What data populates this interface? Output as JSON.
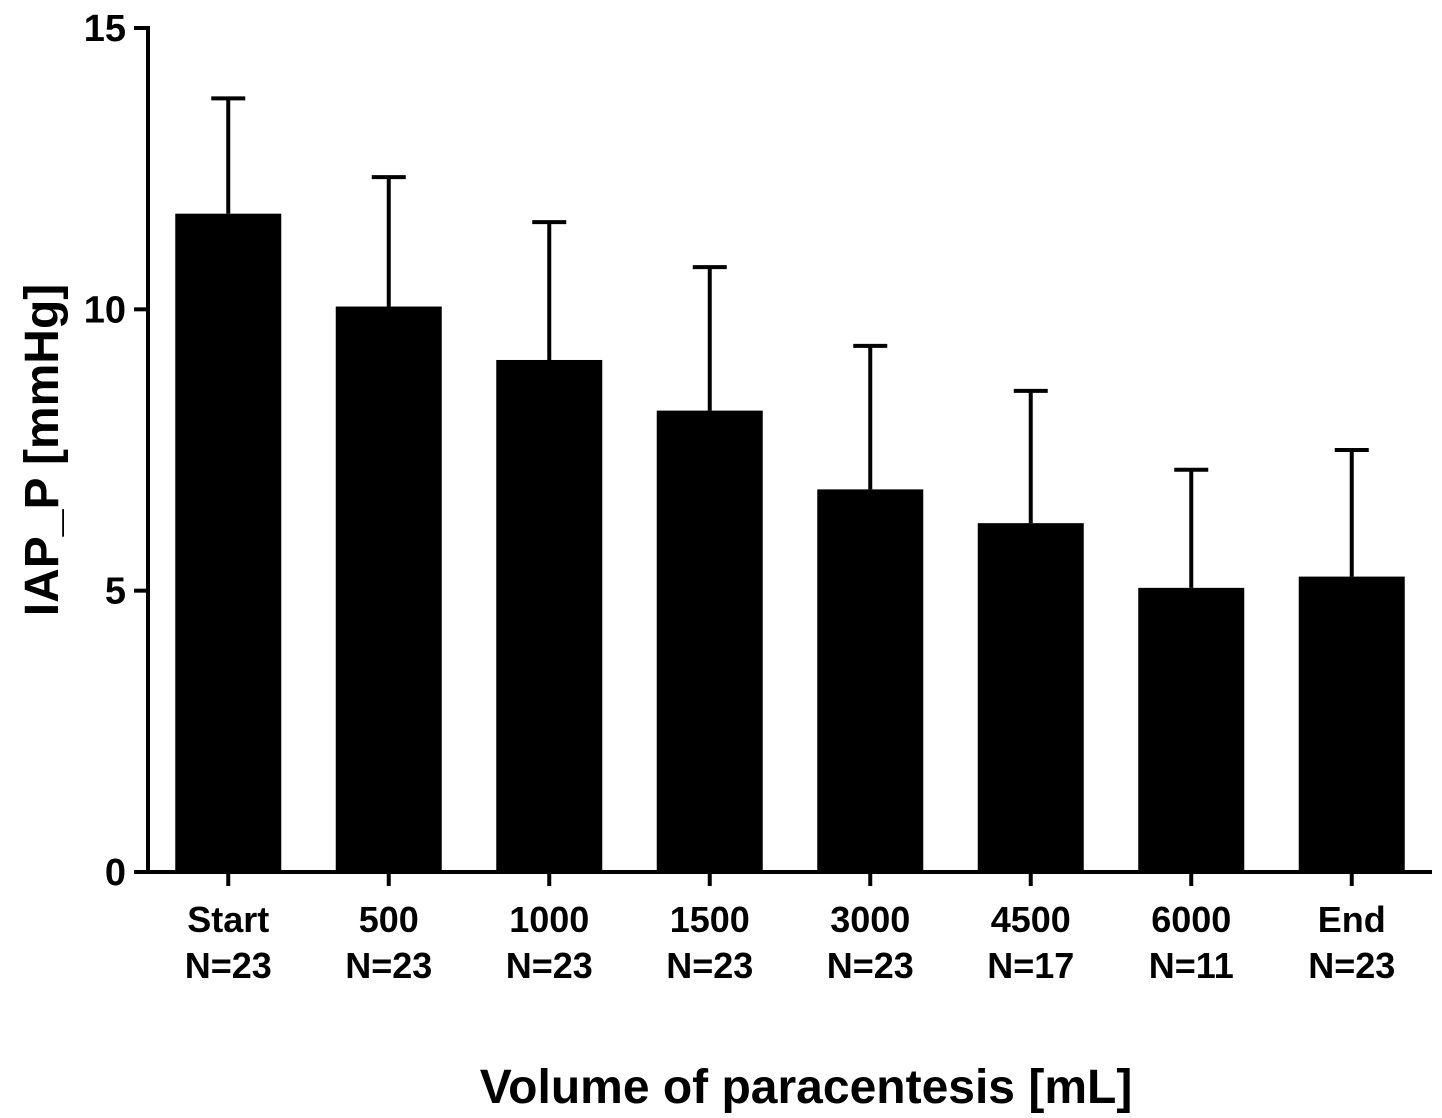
{
  "chart_data": {
    "type": "bar",
    "title": "",
    "xlabel": "Volume of paracentesis [mL]",
    "ylabel": "IAP_P [mmHg]",
    "ylim": [
      0,
      15
    ],
    "yticks": [
      "0",
      "5",
      "10",
      "15"
    ],
    "categories": [
      "Start",
      "500",
      "1000",
      "1500",
      "3000",
      "4500",
      "6000",
      "End"
    ],
    "n_labels": [
      "N=23",
      "N=23",
      "N=23",
      "N=23",
      "N=23",
      "N=17",
      "N=11",
      "N=23"
    ],
    "values": [
      11.7,
      10.05,
      9.1,
      8.2,
      6.8,
      6.2,
      5.05,
      5.25
    ],
    "error_upper": [
      13.75,
      12.35,
      11.55,
      10.75,
      9.35,
      8.55,
      7.15,
      7.5
    ],
    "grid": false,
    "legend": "none",
    "colors": {
      "bar": "#000000",
      "axis": "#000000",
      "background": "#ffffff"
    }
  }
}
